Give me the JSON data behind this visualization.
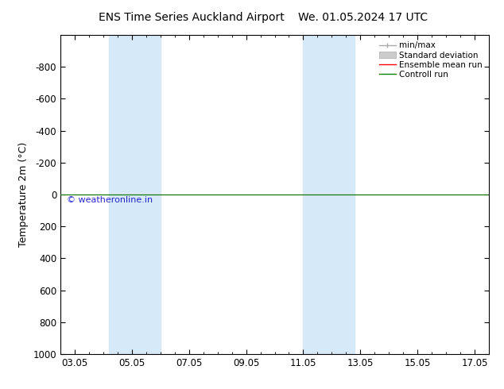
{
  "title_left": "ENS Time Series Auckland Airport",
  "title_right": "We. 01.05.2024 17 UTC",
  "ylabel": "Temperature 2m (°C)",
  "watermark": "© weatheronline.in",
  "ylim_bottom": 1000,
  "ylim_top": -1000,
  "yticks": [
    -800,
    -600,
    -400,
    -200,
    0,
    200,
    400,
    600,
    800,
    1000
  ],
  "xtick_labels": [
    "03.05",
    "05.05",
    "07.05",
    "09.05",
    "11.05",
    "13.05",
    "15.05",
    "17.05"
  ],
  "xtick_positions": [
    3,
    5,
    7,
    9,
    11,
    13,
    15,
    17
  ],
  "xmin": 2.5,
  "xmax": 17.5,
  "shaded_bands": [
    [
      4.2,
      5.2
    ],
    [
      5.2,
      6.0
    ],
    [
      11.0,
      11.8
    ],
    [
      11.8,
      12.8
    ]
  ],
  "shade_color": "#d6e9f8",
  "control_run_y": 0,
  "control_run_color": "#008000",
  "ensemble_mean_color": "#ff0000",
  "legend_items": [
    "min/max",
    "Standard deviation",
    "Ensemble mean run",
    "Controll run"
  ],
  "background_color": "#ffffff",
  "plot_bg_color": "#ffffff",
  "title_fontsize": 10,
  "axis_fontsize": 9,
  "tick_fontsize": 8.5,
  "legend_fontsize": 7.5
}
